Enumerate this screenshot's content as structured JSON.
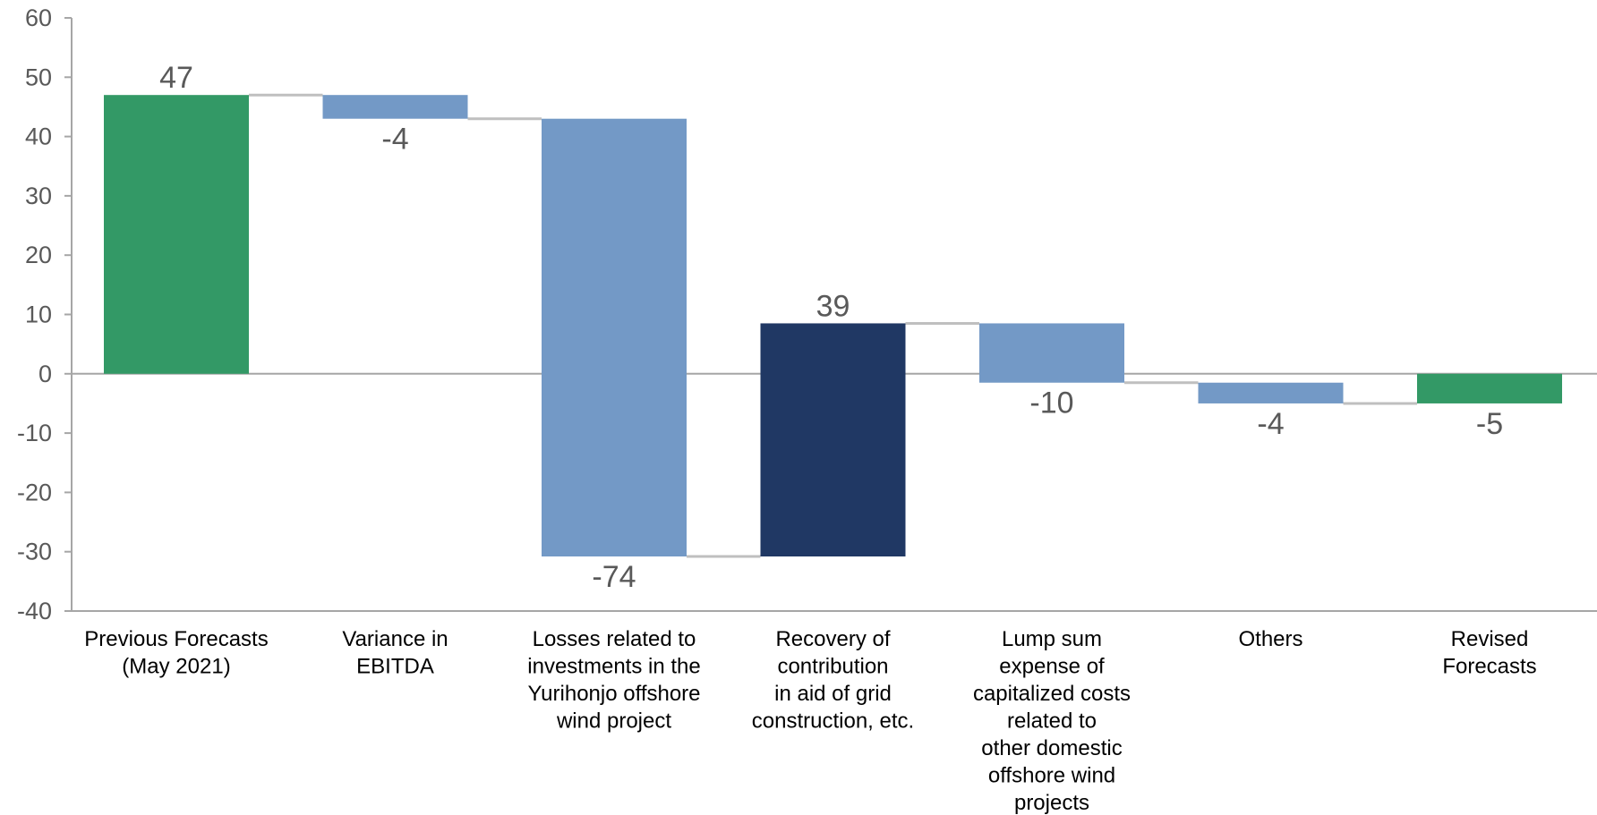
{
  "chart_data": {
    "type": "bar",
    "subtype": "waterfall",
    "title": "",
    "xlabel": "",
    "ylabel": "",
    "ylim": [
      -40,
      60
    ],
    "yticks": [
      60,
      50,
      40,
      30,
      20,
      10,
      0,
      -10,
      -20,
      -30,
      -40
    ],
    "grid": false,
    "legend": "none",
    "categories": [
      [
        "Previous Forecasts",
        "(May 2021)"
      ],
      [
        "Variance in",
        "EBITDA"
      ],
      [
        "Losses related to",
        "investments in the",
        "Yurihonjo offshore",
        "wind project"
      ],
      [
        "Recovery of",
        "contribution",
        "in aid of grid",
        "construction, etc."
      ],
      [
        "Lump sum",
        "expense of",
        "capitalized costs",
        "related to",
        "other domestic",
        "offshore wind",
        "projects"
      ],
      [
        "Others"
      ],
      [
        "Revised",
        "Forecasts"
      ]
    ],
    "bars": [
      {
        "start": 0,
        "end": 47,
        "label": "47",
        "color": "#339966"
      },
      {
        "start": 47,
        "end": 43,
        "label": "-4",
        "color": "#7399C6"
      },
      {
        "start": 43,
        "end": -30.8,
        "label": "-74",
        "color": "#7399C6"
      },
      {
        "start": -30.8,
        "end": 8.5,
        "label": "39",
        "color": "#203864"
      },
      {
        "start": 8.5,
        "end": -1.5,
        "label": "-10",
        "color": "#7399C6"
      },
      {
        "start": -1.5,
        "end": -5,
        "label": "-4",
        "color": "#7399C6"
      },
      {
        "start": 0,
        "end": -5,
        "label": "-5",
        "color": "#339966"
      }
    ],
    "colors": {
      "total": "#339966",
      "decrease": "#7399C6",
      "increase": "#203864",
      "axis": "#A6A6A6",
      "connector": "#BFBFBF",
      "tick_text": "#595959",
      "category_text": "#000000"
    }
  }
}
